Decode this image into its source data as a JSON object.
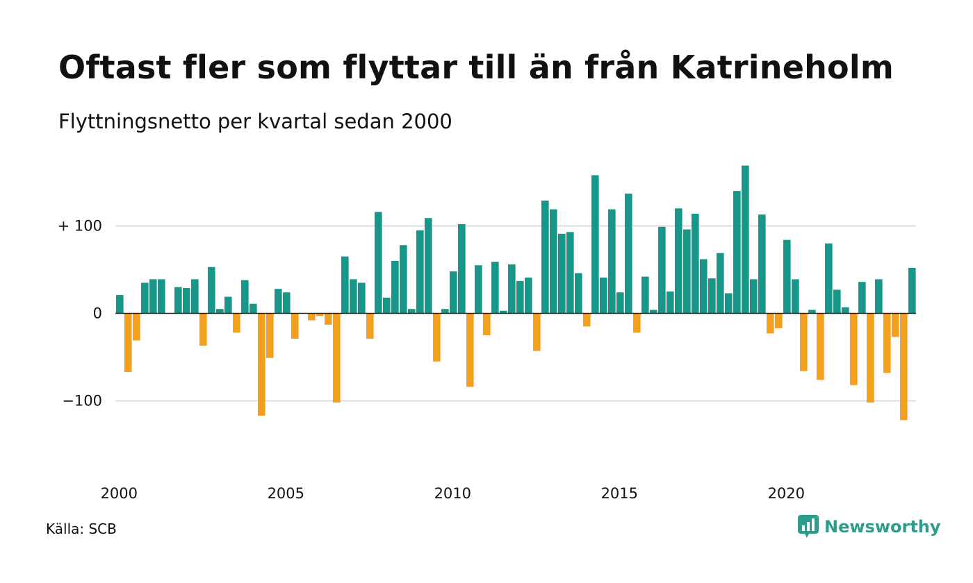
{
  "header": {
    "title": "Oftast fler som flyttar till än från Katrineholm",
    "subtitle": "Flyttningsnetto per kvartal sedan 2000"
  },
  "footer": {
    "source": "Källa: SCB",
    "brand": "Newsworthy",
    "brand_icon": "bar-chart-speech-bubble-icon"
  },
  "colors": {
    "positive": "#17978a",
    "negative": "#f4a01e",
    "grid": "#dddddd",
    "zero_line": "#222222",
    "brand": "#2e9c8a"
  },
  "chart_data": {
    "type": "bar",
    "title": "Oftast fler som flyttar till än från Katrineholm",
    "subtitle": "Flyttningsnetto per kvartal sedan 2000",
    "x_start": "2000 Q1",
    "x_ticks": [
      "2000",
      "2005",
      "2010",
      "2015",
      "2020"
    ],
    "y_ticks": [
      {
        "value": 100,
        "label": "+ 100"
      },
      {
        "value": 0,
        "label": "0"
      },
      {
        "value": -100,
        "label": "−100"
      }
    ],
    "ylim": [
      -170,
      170
    ],
    "grid": true,
    "values": [
      21,
      -67,
      -31,
      35,
      39,
      39,
      0,
      30,
      29,
      39,
      -37,
      53,
      5,
      19,
      -22,
      38,
      11,
      -117,
      -51,
      28,
      24,
      -29,
      0,
      -8,
      -3,
      -13,
      -102,
      65,
      39,
      35,
      -29,
      116,
      18,
      60,
      78,
      5,
      95,
      109,
      -55,
      5,
      48,
      102,
      -84,
      55,
      -25,
      59,
      3,
      56,
      37,
      41,
      -43,
      129,
      119,
      91,
      93,
      46,
      -15,
      158,
      41,
      119,
      24,
      137,
      -22,
      42,
      4,
      99,
      25,
      120,
      96,
      114,
      62,
      40,
      69,
      23,
      140,
      169,
      39,
      113,
      -23,
      -17,
      84,
      39,
      -66,
      4,
      -76,
      80,
      27,
      7,
      -82,
      36,
      -102,
      39,
      -68,
      -27,
      -122,
      52
    ]
  }
}
